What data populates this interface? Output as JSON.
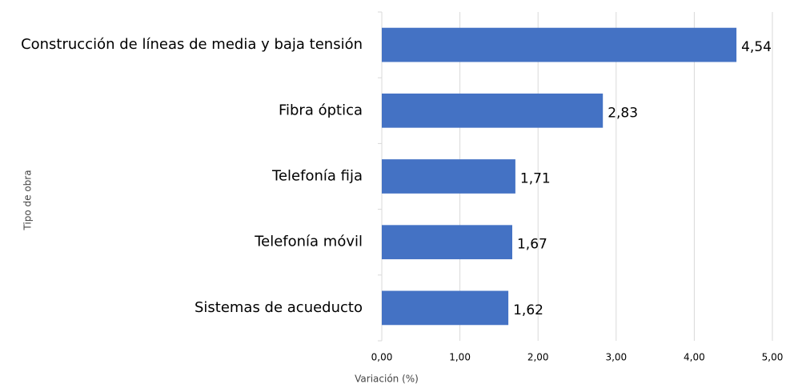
{
  "chart_data": {
    "type": "barh",
    "categories": [
      "Construcción de líneas de media y baja tensión",
      "Fibra óptica",
      "Telefonía fija",
      "Telefonía móvil",
      "Sistemas de acueducto"
    ],
    "values": [
      4.54,
      2.83,
      1.71,
      1.67,
      1.62
    ],
    "value_labels": [
      "4,54",
      "2,83",
      "1,71",
      "1,67",
      "1,62"
    ],
    "color": "#4472c4",
    "xlim": [
      0,
      5
    ],
    "xticks": [
      {
        "value": 0,
        "label": "0,00"
      },
      {
        "value": 1,
        "label": "1,00"
      },
      {
        "value": 2,
        "label": "2,00"
      },
      {
        "value": 3,
        "label": "3,00"
      },
      {
        "value": 4,
        "label": "4,00"
      },
      {
        "value": 5,
        "label": "5,00"
      }
    ],
    "xlabel": "Variación (%)",
    "ylabel": "Tipo de obra",
    "grid": true
  }
}
